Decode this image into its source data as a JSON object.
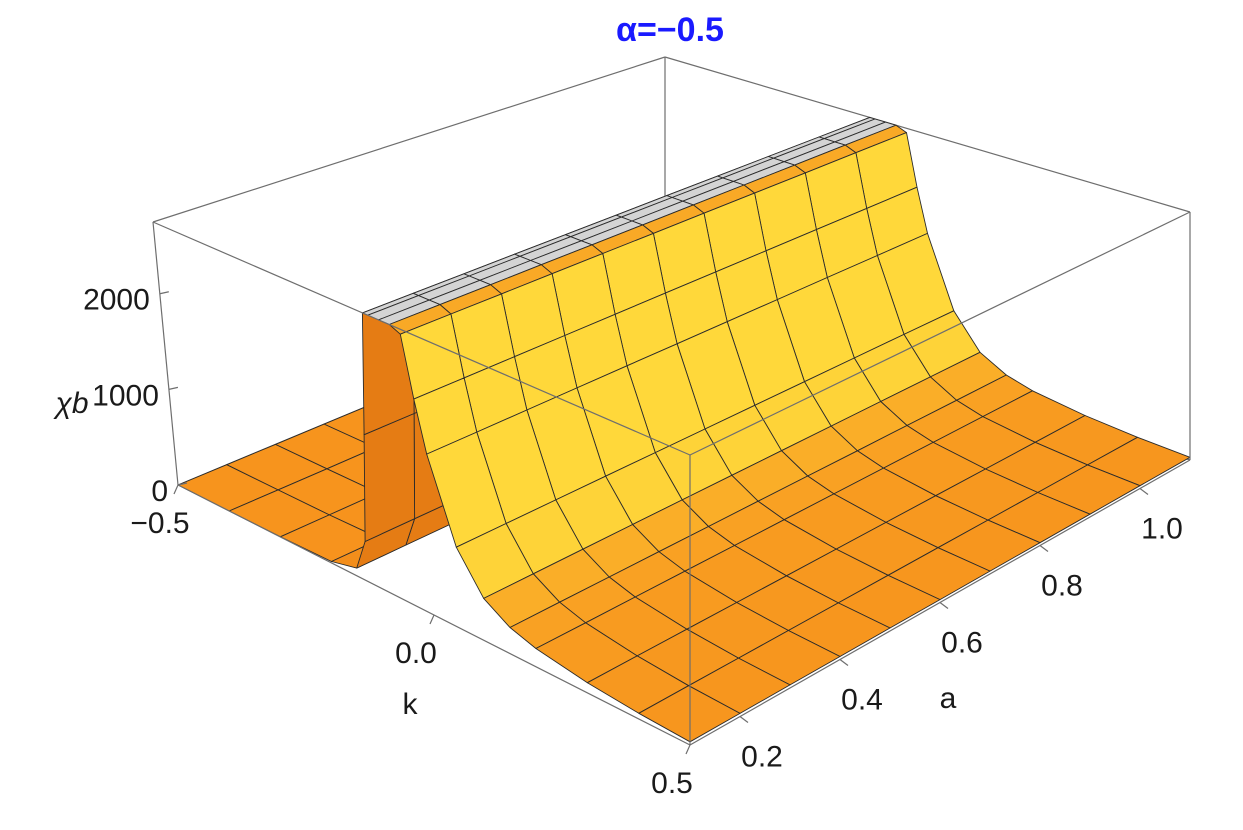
{
  "chart_data": {
    "type": "surface3d",
    "title": "α=−0.5",
    "xlabel": "k",
    "ylabel": "a",
    "zlabel": "χb",
    "xlim": [
      -0.5,
      0.5
    ],
    "ylim": [
      0.1,
      1.1
    ],
    "zlim": [
      0,
      2750
    ],
    "xticks": [
      {
        "value": -0.5,
        "label": "−0.5"
      },
      {
        "value": 0,
        "label": "0.0"
      },
      0.5
    ],
    "yticks": [
      0.2,
      0.4,
      0.6,
      0.8,
      {
        "value": 1,
        "label": "1.0"
      }
    ],
    "zticks": [
      0,
      1000,
      2000
    ],
    "color": "#f7941d",
    "highlight_color": "#ffd83a",
    "shadow_color": "#e57c14",
    "clip_color": "#d4d4d4",
    "k": [
      -0.5,
      -0.4,
      -0.3,
      -0.2,
      -0.15,
      -0.13,
      -0.12,
      -0.11,
      -0.1,
      -0.08,
      -0.06,
      -0.04,
      -0.02,
      0,
      0.05,
      0.1,
      0.15,
      0.2,
      0.3,
      0.4,
      0.5
    ],
    "a": [
      0.1,
      0.2,
      0.3,
      0.4,
      0.5,
      0.6,
      0.7,
      0.8,
      0.9,
      1.0,
      1.1
    ],
    "z": [
      [
        0,
        0,
        2,
        15,
        80,
        400,
        1500,
        2750,
        2750,
        2750,
        2750,
        2700,
        2100,
        1600,
        800,
        420,
        260,
        180,
        100,
        55,
        30
      ],
      [
        0,
        0,
        2,
        15,
        80,
        400,
        1500,
        2750,
        2750,
        2750,
        2750,
        2700,
        2100,
        1600,
        800,
        420,
        260,
        180,
        100,
        55,
        30
      ],
      [
        0,
        0,
        2,
        15,
        80,
        400,
        1500,
        2750,
        2750,
        2750,
        2750,
        2700,
        2100,
        1600,
        800,
        420,
        260,
        180,
        100,
        55,
        30
      ],
      [
        0,
        0,
        2,
        15,
        80,
        400,
        1500,
        2750,
        2750,
        2750,
        2750,
        2700,
        2100,
        1600,
        800,
        420,
        260,
        180,
        100,
        55,
        30
      ],
      [
        0,
        0,
        2,
        15,
        80,
        400,
        1500,
        2750,
        2750,
        2750,
        2750,
        2700,
        2100,
        1600,
        800,
        420,
        260,
        180,
        100,
        55,
        30
      ],
      [
        0,
        0,
        2,
        15,
        80,
        400,
        1500,
        2750,
        2750,
        2750,
        2750,
        2700,
        2100,
        1600,
        800,
        420,
        260,
        180,
        100,
        55,
        30
      ],
      [
        0,
        0,
        2,
        15,
        80,
        400,
        1500,
        2750,
        2750,
        2750,
        2750,
        2700,
        2100,
        1600,
        800,
        420,
        260,
        180,
        100,
        55,
        30
      ],
      [
        0,
        0,
        2,
        15,
        80,
        400,
        1500,
        2750,
        2750,
        2750,
        2750,
        2700,
        2100,
        1600,
        800,
        420,
        260,
        180,
        100,
        55,
        30
      ],
      [
        0,
        0,
        2,
        15,
        80,
        400,
        1500,
        2750,
        2750,
        2750,
        2750,
        2700,
        2100,
        1600,
        800,
        420,
        260,
        180,
        100,
        55,
        30
      ],
      [
        0,
        0,
        2,
        15,
        80,
        400,
        1500,
        2750,
        2750,
        2750,
        2750,
        2700,
        2100,
        1600,
        800,
        420,
        260,
        180,
        100,
        55,
        30
      ],
      [
        0,
        0,
        2,
        15,
        80,
        400,
        1500,
        2750,
        2750,
        2750,
        2750,
        2700,
        2100,
        1600,
        800,
        420,
        260,
        180,
        100,
        55,
        30
      ]
    ]
  }
}
